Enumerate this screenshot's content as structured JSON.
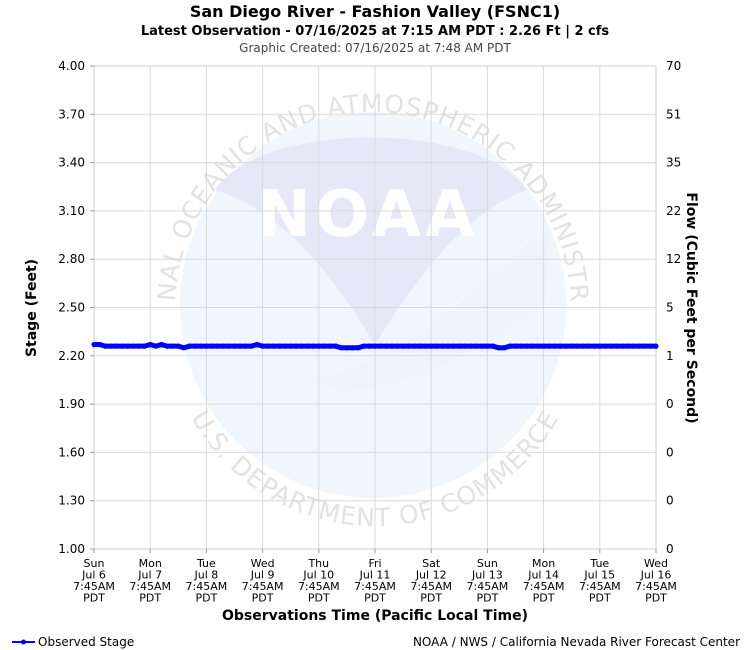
{
  "header": {
    "title": "San Diego River - Fashion Valley (FSNC1)",
    "subtitle": "Latest Observation - 07/16/2025 at 7:15 AM PDT : 2.26 Ft | 2 cfs",
    "created": "Graphic Created: 07/16/2025 at 7:48 AM PDT"
  },
  "watermark": {
    "logo_text": "NOAA",
    "ring_top": "NATIONAL OCEANIC AND ATMOSPHERIC ADMINISTRATION",
    "ring_bottom": "U.S. DEPARTMENT OF COMMERCE"
  },
  "legend": {
    "label": "Observed Stage",
    "color": "#0000ff"
  },
  "footer": {
    "credit": "NOAA / NWS / California Nevada River Forecast Center"
  },
  "chart_data": {
    "type": "line",
    "ylabel": "Stage (Feet)",
    "y2label": "Flow (Cubic Feet per Second)",
    "xlabel": "Observations Time (Pacific Local Time)",
    "ylim": [
      1.0,
      4.0
    ],
    "yticks": [
      "1.00",
      "1.30",
      "1.60",
      "1.90",
      "2.20",
      "2.50",
      "2.80",
      "3.10",
      "3.40",
      "3.70",
      "4.00"
    ],
    "y2ticks": [
      "0",
      "0",
      "0",
      "0",
      "1",
      "5",
      "12",
      "22",
      "35",
      "51",
      "70"
    ],
    "x_categories": [
      {
        "day": "Sun",
        "date": "Jul 6",
        "time": "7:45AM",
        "tz": "PDT"
      },
      {
        "day": "Mon",
        "date": "Jul 7",
        "time": "7:45AM",
        "tz": "PDT"
      },
      {
        "day": "Tue",
        "date": "Jul 8",
        "time": "7:45AM",
        "tz": "PDT"
      },
      {
        "day": "Wed",
        "date": "Jul 9",
        "time": "7:45AM",
        "tz": "PDT"
      },
      {
        "day": "Thu",
        "date": "Jul 10",
        "time": "7:45AM",
        "tz": "PDT"
      },
      {
        "day": "Fri",
        "date": "Jul 11",
        "time": "7:45AM",
        "tz": "PDT"
      },
      {
        "day": "Sat",
        "date": "Jul 12",
        "time": "7:45AM",
        "tz": "PDT"
      },
      {
        "day": "Sun",
        "date": "Jul 13",
        "time": "7:45AM",
        "tz": "PDT"
      },
      {
        "day": "Mon",
        "date": "Jul 14",
        "time": "7:45AM",
        "tz": "PDT"
      },
      {
        "day": "Tue",
        "date": "Jul 15",
        "time": "7:45AM",
        "tz": "PDT"
      },
      {
        "day": "Wed",
        "date": "Jul 16",
        "time": "7:45AM",
        "tz": "PDT"
      }
    ],
    "grid": true,
    "legend_position": "bottom-left",
    "series": [
      {
        "name": "Observed Stage",
        "color": "#0000ff",
        "x": [
          0,
          0.1,
          0.2,
          0.3,
          0.4,
          0.5,
          0.6,
          0.7,
          0.8,
          0.9,
          1.0,
          1.1,
          1.2,
          1.3,
          1.4,
          1.5,
          1.6,
          1.7,
          1.8,
          1.9,
          2.0,
          2.1,
          2.2,
          2.3,
          2.4,
          2.5,
          2.6,
          2.7,
          2.8,
          2.9,
          3.0,
          3.1,
          3.2,
          3.3,
          3.4,
          3.5,
          3.6,
          3.7,
          3.8,
          3.9,
          4.0,
          4.1,
          4.2,
          4.3,
          4.4,
          4.5,
          4.6,
          4.7,
          4.8,
          4.9,
          5.0,
          5.1,
          5.2,
          5.3,
          5.4,
          5.5,
          5.6,
          5.7,
          5.8,
          5.9,
          6.0,
          6.1,
          6.2,
          6.3,
          6.4,
          6.5,
          6.6,
          6.7,
          6.8,
          6.9,
          7.0,
          7.1,
          7.2,
          7.3,
          7.4,
          7.5,
          7.6,
          7.7,
          7.8,
          7.9,
          8.0,
          8.1,
          8.2,
          8.3,
          8.4,
          8.5,
          8.6,
          8.7,
          8.8,
          8.9,
          9.0,
          9.1,
          9.2,
          9.3,
          9.4,
          9.5,
          9.6,
          9.7,
          9.8,
          9.9,
          10.0
        ],
        "values": [
          2.27,
          2.27,
          2.26,
          2.26,
          2.26,
          2.26,
          2.26,
          2.26,
          2.26,
          2.26,
          2.27,
          2.26,
          2.27,
          2.26,
          2.26,
          2.26,
          2.25,
          2.26,
          2.26,
          2.26,
          2.26,
          2.26,
          2.26,
          2.26,
          2.26,
          2.26,
          2.26,
          2.26,
          2.26,
          2.27,
          2.26,
          2.26,
          2.26,
          2.26,
          2.26,
          2.26,
          2.26,
          2.26,
          2.26,
          2.26,
          2.26,
          2.26,
          2.26,
          2.26,
          2.25,
          2.25,
          2.25,
          2.25,
          2.26,
          2.26,
          2.26,
          2.26,
          2.26,
          2.26,
          2.26,
          2.26,
          2.26,
          2.26,
          2.26,
          2.26,
          2.26,
          2.26,
          2.26,
          2.26,
          2.26,
          2.26,
          2.26,
          2.26,
          2.26,
          2.26,
          2.26,
          2.26,
          2.25,
          2.25,
          2.26,
          2.26,
          2.26,
          2.26,
          2.26,
          2.26,
          2.26,
          2.26,
          2.26,
          2.26,
          2.26,
          2.26,
          2.26,
          2.26,
          2.26,
          2.26,
          2.26,
          2.26,
          2.26,
          2.26,
          2.26,
          2.26,
          2.26,
          2.26,
          2.26,
          2.26,
          2.26
        ]
      }
    ]
  }
}
